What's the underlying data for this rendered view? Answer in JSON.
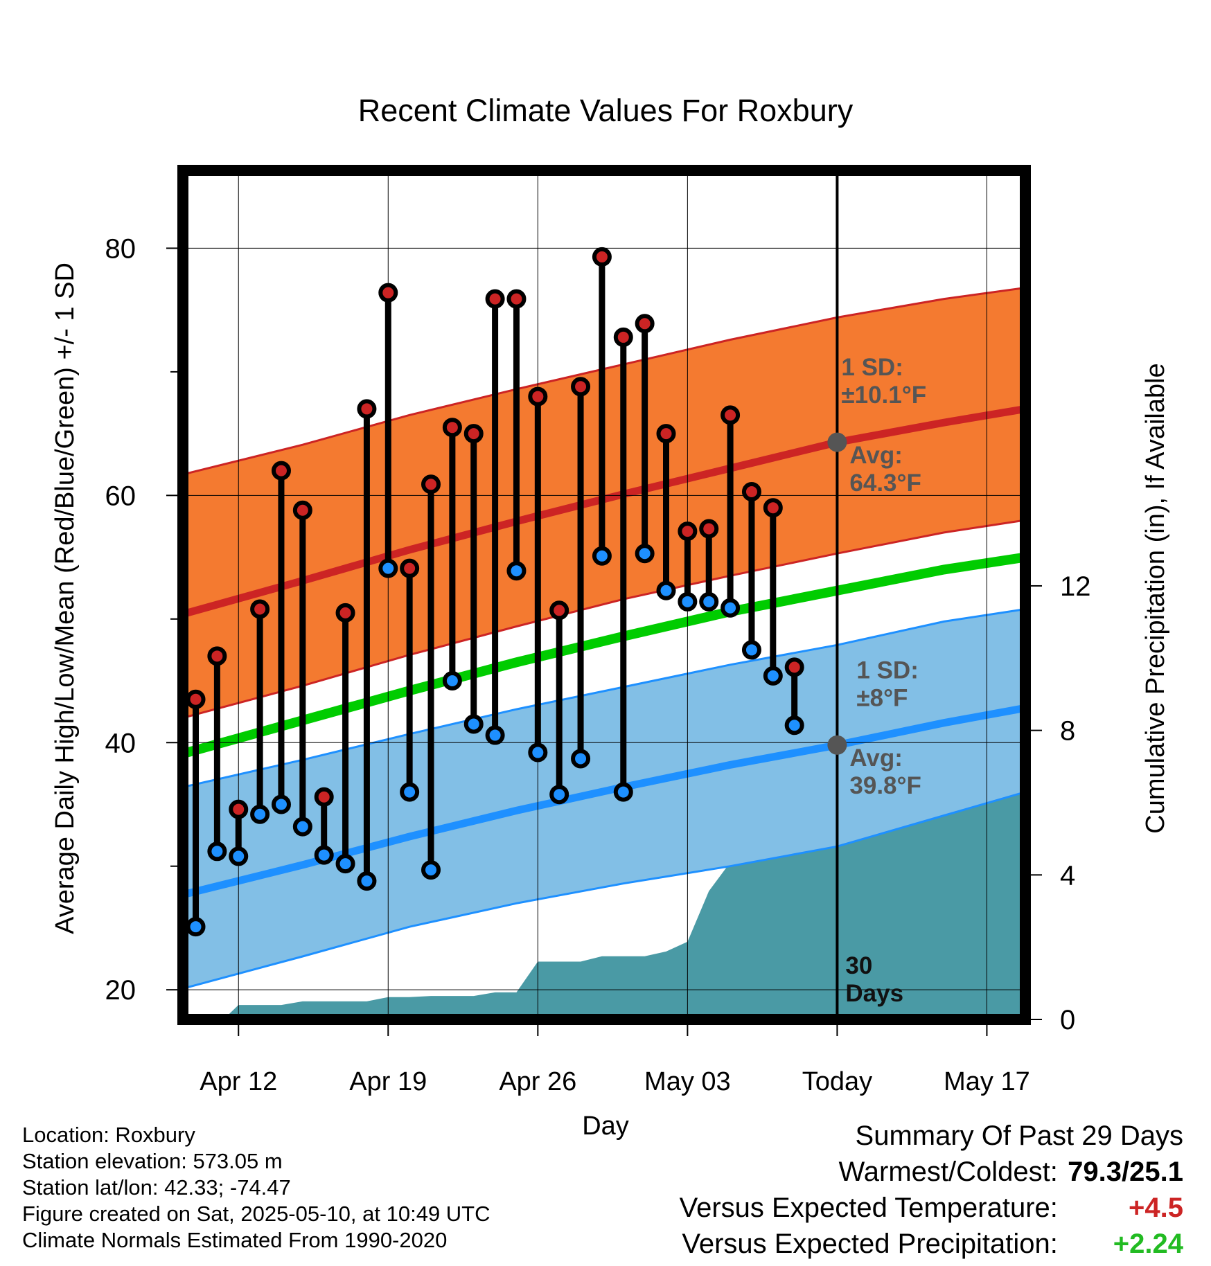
{
  "chart_data": {
    "type": "line",
    "title": "Recent Climate Values For Roxbury",
    "xlabel": "Day",
    "ylabel": "Average Daily High/Low/Mean (Red/Blue/Green) +/- 1 SD",
    "y2label": "Cumulative Precipitation (in), If Available",
    "x_ticks": [
      "Apr 12",
      "Apr 19",
      "Apr 26",
      "May 03",
      "Today",
      "May 17"
    ],
    "x_tick_day_index": [
      2,
      9,
      16,
      23,
      30,
      37
    ],
    "x_range_day_index": [
      -0.6,
      38.8
    ],
    "ylim": [
      17.6,
      86.3
    ],
    "y_ticks": [
      20,
      40,
      60,
      80
    ],
    "y_minor_ticks": [
      30,
      50,
      70
    ],
    "y2lim": [
      0,
      23.5
    ],
    "y2_ticks": [
      0,
      4,
      8,
      12
    ],
    "grid": true,
    "today_index": 30,
    "today_label": "30\nDays",
    "normals": {
      "day_index": [
        -0.6,
        5,
        10,
        15,
        20,
        25,
        30,
        35,
        38.8
      ],
      "high_mean": [
        50.4,
        53.1,
        55.6,
        57.9,
        60.1,
        62.2,
        64.3,
        65.9,
        67.0
      ],
      "high_upper": [
        61.7,
        64.1,
        66.5,
        68.6,
        70.6,
        72.6,
        74.4,
        75.9,
        76.8
      ],
      "high_lower": [
        42.0,
        44.6,
        47.1,
        49.4,
        51.6,
        53.5,
        55.3,
        57.0,
        58.0
      ],
      "mean": [
        39.1,
        41.8,
        44.2,
        46.5,
        48.6,
        50.6,
        52.3,
        54.0,
        55.0
      ],
      "low_mean": [
        27.7,
        30.1,
        32.4,
        34.5,
        36.4,
        38.2,
        39.8,
        41.6,
        42.8
      ],
      "low_upper": [
        36.4,
        38.6,
        40.7,
        42.7,
        44.5,
        46.3,
        47.9,
        49.8,
        50.8
      ],
      "low_lower": [
        20.1,
        22.7,
        25.1,
        27.0,
        28.6,
        30.0,
        31.6,
        34.1,
        36.0
      ],
      "high_sd_label": "1 SD:\n±10.1°F",
      "high_avg_label": "Avg:\n64.3°F",
      "low_sd_label": "1 SD:\n±8°F",
      "low_avg_label": "Avg:\n39.8°F"
    },
    "daily": [
      {
        "day": 0,
        "high": 43.5,
        "low": 25.1
      },
      {
        "day": 1,
        "high": 47.0,
        "low": 31.2
      },
      {
        "day": 2,
        "high": 34.6,
        "low": 30.8
      },
      {
        "day": 3,
        "high": 50.8,
        "low": 34.2
      },
      {
        "day": 4,
        "high": 62.0,
        "low": 35.0
      },
      {
        "day": 5,
        "high": 58.8,
        "low": 33.2
      },
      {
        "day": 6,
        "high": 35.6,
        "low": 30.9
      },
      {
        "day": 7,
        "high": 50.5,
        "low": 30.2
      },
      {
        "day": 8,
        "high": 67.0,
        "low": 28.8
      },
      {
        "day": 9,
        "high": 76.4,
        "low": 54.1
      },
      {
        "day": 10,
        "high": 54.1,
        "low": 36.0
      },
      {
        "day": 11,
        "high": 60.9,
        "low": 29.7
      },
      {
        "day": 12,
        "high": 65.5,
        "low": 45.0
      },
      {
        "day": 13,
        "high": 65.0,
        "low": 41.5
      },
      {
        "day": 14,
        "high": 75.9,
        "low": 40.6
      },
      {
        "day": 15,
        "high": 75.9,
        "low": 53.9
      },
      {
        "day": 16,
        "high": 68.0,
        "low": 39.2
      },
      {
        "day": 17,
        "high": 50.7,
        "low": 35.8
      },
      {
        "day": 18,
        "high": 68.8,
        "low": 38.7
      },
      {
        "day": 19,
        "high": 79.3,
        "low": 55.1
      },
      {
        "day": 20,
        "high": 72.8,
        "low": 36.0
      },
      {
        "day": 21,
        "high": 73.9,
        "low": 55.3
      },
      {
        "day": 22,
        "high": 65.0,
        "low": 52.3
      },
      {
        "day": 23,
        "high": 57.1,
        "low": 51.4
      },
      {
        "day": 24,
        "high": 57.3,
        "low": 51.4
      },
      {
        "day": 25,
        "high": 66.5,
        "low": 50.9
      },
      {
        "day": 26,
        "high": 60.3,
        "low": 47.5
      },
      {
        "day": 27,
        "high": 59.0,
        "low": 45.4
      },
      {
        "day": 28,
        "high": 46.1,
        "low": 41.4
      }
    ],
    "cumulative_precip": {
      "day_index": [
        -0.6,
        1.3,
        2.0,
        3.0,
        4.0,
        5.0,
        6.0,
        7.0,
        8.0,
        9.0,
        10.0,
        11.0,
        12.0,
        13.0,
        14.0,
        15.0,
        16.0,
        17.0,
        18.0,
        19.0,
        20.0,
        21.0,
        22.0,
        23.0,
        24.0,
        25.0,
        26.0,
        27.0,
        28.0,
        30.0,
        38.8
      ],
      "values": [
        0.0,
        0.0,
        0.4,
        0.4,
        0.4,
        0.5,
        0.5,
        0.5,
        0.5,
        0.62,
        0.62,
        0.65,
        0.65,
        0.65,
        0.75,
        0.75,
        1.6,
        1.6,
        1.6,
        1.75,
        1.75,
        1.75,
        1.88,
        2.15,
        3.55,
        4.35,
        4.85,
        4.85,
        4.88,
        6.25,
        6.25
      ]
    },
    "colors": {
      "high": "#cc2424",
      "high_band": "#f47a30",
      "mean": "#00cc00",
      "low": "#1e90ff",
      "low_band": "#82bfe6",
      "precip": "#4a9aa5",
      "label_gray": "#555555"
    }
  },
  "info": {
    "location": "Location: Roxbury",
    "elevation": "Station elevation: 573.05 m",
    "latlon": "Station lat/lon: 42.33; -74.47",
    "created": "Figure created on Sat, 2025-05-10, at 10:49 UTC",
    "normals": "Climate Normals Estimated From 1990-2020"
  },
  "summary": {
    "title": "Summary Of Past 29 Days",
    "warm_cold_label": "Warmest/Coldest:",
    "warm_cold_value": "79.3/25.1",
    "temp_label": "Versus Expected Temperature:",
    "temp_value": "+4.5",
    "precip_label": "Versus Expected Precipitation:",
    "precip_value": "+2.24",
    "temp_color": "#cc2424",
    "precip_color": "#22bb22"
  }
}
